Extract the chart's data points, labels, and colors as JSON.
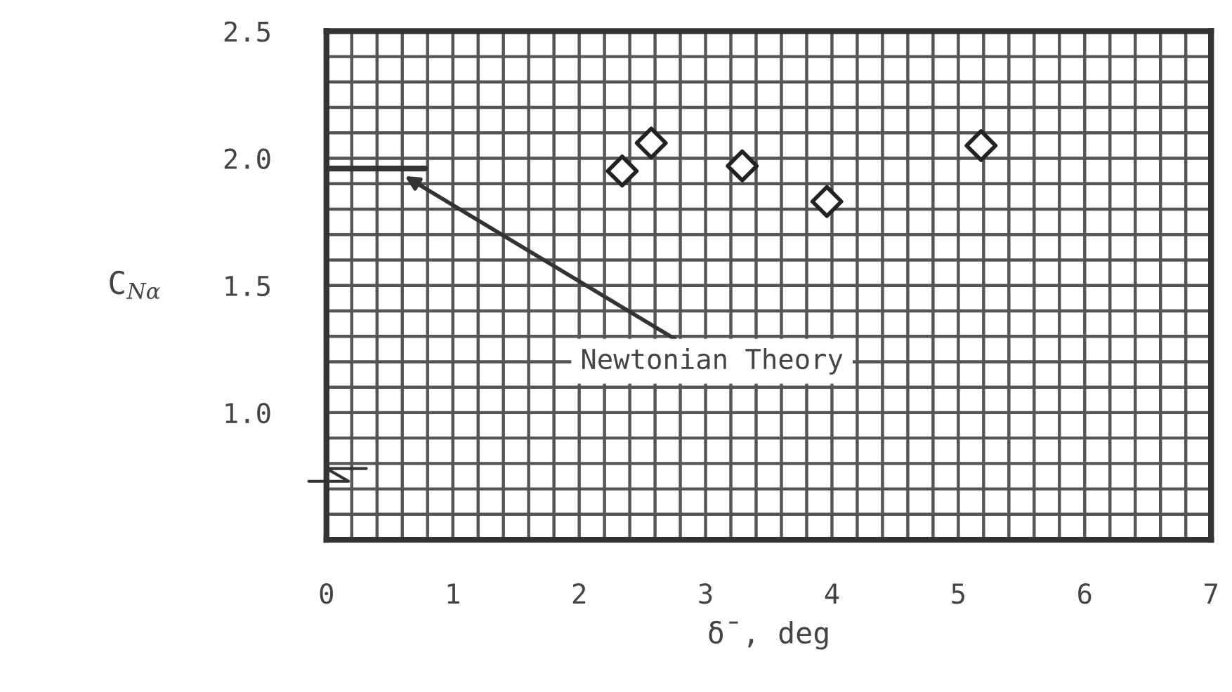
{
  "chart_data": {
    "type": "scatter",
    "xlabel": "δ̄, deg",
    "ylabel": "C$_{Nα}$",
    "xlim": [
      0,
      7
    ],
    "ylim": [
      0.5,
      2.5
    ],
    "xticks": [
      0,
      {
        "value": 0.2,
        "label": null
      },
      {
        "value": 0.4,
        "label": null
      },
      {
        "value": 0.6,
        "label": null
      },
      {
        "value": 0.8,
        "label": null
      },
      1,
      {
        "value": 1.2,
        "label": null
      },
      {
        "value": 1.4,
        "label": null
      },
      {
        "value": 1.6,
        "label": null
      },
      {
        "value": 1.8,
        "label": null
      },
      2,
      {
        "value": 2.2,
        "label": null
      },
      {
        "value": 2.4,
        "label": null
      },
      {
        "value": 2.6,
        "label": null
      },
      {
        "value": 2.8,
        "label": null
      },
      3,
      {
        "value": 3.2,
        "label": null
      },
      {
        "value": 3.4,
        "label": null
      },
      {
        "value": 3.6,
        "label": null
      },
      {
        "value": 3.8,
        "label": null
      },
      4,
      {
        "value": 4.2,
        "label": null
      },
      {
        "value": 4.4,
        "label": null
      },
      {
        "value": 4.6,
        "label": null
      },
      {
        "value": 4.8,
        "label": null
      },
      5,
      {
        "value": 5.2,
        "label": null
      },
      {
        "value": 5.4,
        "label": null
      },
      {
        "value": 5.6,
        "label": null
      },
      {
        "value": 5.8,
        "label": null
      },
      6,
      {
        "value": 6.2,
        "label": null
      },
      {
        "value": 6.4,
        "label": null
      },
      {
        "value": 6.6,
        "label": null
      },
      {
        "value": 6.8,
        "label": null
      },
      7
    ],
    "yticks": [
      {
        "value": 0.5,
        "label": null
      },
      {
        "value": 0.6,
        "label": null
      },
      {
        "value": 0.7,
        "label": null
      },
      {
        "value": 0.8,
        "label": null
      },
      {
        "value": 0.9,
        "label": null
      },
      {
        "value": 1.0,
        "label": "1.0"
      },
      {
        "value": 1.1,
        "label": null
      },
      {
        "value": 1.2,
        "label": null
      },
      {
        "value": 1.3,
        "label": null
      },
      {
        "value": 1.4,
        "label": null
      },
      {
        "value": 1.5,
        "label": "1.5"
      },
      {
        "value": 1.6,
        "label": null
      },
      {
        "value": 1.7,
        "label": null
      },
      {
        "value": 1.8,
        "label": null
      },
      {
        "value": 1.9,
        "label": null
      },
      {
        "value": 2.0,
        "label": "2.0"
      },
      {
        "value": 2.1,
        "label": null
      },
      {
        "value": 2.2,
        "label": null
      },
      {
        "value": 2.3,
        "label": null
      },
      {
        "value": 2.4,
        "label": null
      },
      {
        "value": 2.5,
        "label": "2.5"
      }
    ],
    "grid": true,
    "series": [
      {
        "type": "line",
        "color": "#333333",
        "x": [
          0,
          0.78
        ],
        "values": [
          1.96,
          1.96
        ]
      },
      {
        "color": "#222222",
        "marker": "diamond",
        "x": [
          2.34,
          3.96,
          2.57,
          5.18,
          3.29
        ],
        "values": [
          1.95,
          1.83,
          2.06,
          2.05,
          1.97
        ]
      }
    ],
    "annotations": [
      {
        "text": "Newtonian Theory",
        "x": 0.62,
        "y": 1.93
      }
    ]
  }
}
